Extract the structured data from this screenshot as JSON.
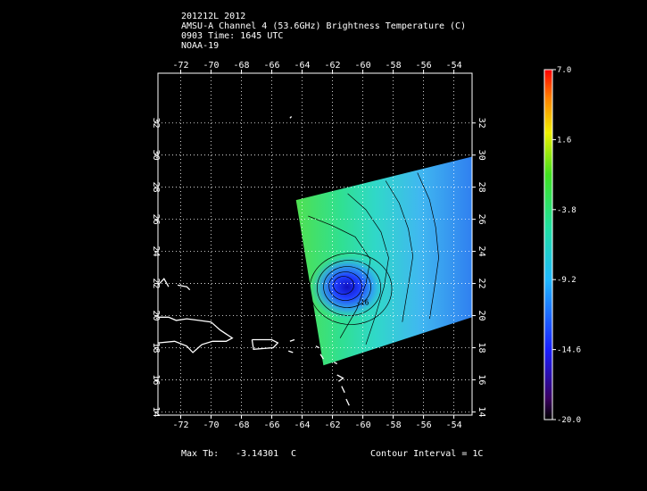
{
  "header": {
    "lines": [
      "201212L 2012",
      "AMSU-A Channel 4 (53.6GHz) Brightness Temperature (C)",
      "0903 Time: 1645 UTC",
      "NOAA-19"
    ]
  },
  "map": {
    "lon_range": [
      -73.5,
      -52.8
    ],
    "lat_range": [
      13.8,
      35.1
    ],
    "lon_ticks": [
      -72,
      -70,
      -68,
      -66,
      -64,
      -62,
      -60,
      -58,
      -56,
      -54
    ],
    "lat_ticks": [
      14,
      16,
      18,
      20,
      22,
      24,
      26,
      28,
      30,
      32
    ],
    "swath_corners": [
      [
        -64.4,
        27.2
      ],
      [
        -52.8,
        29.9
      ],
      [
        -52.8,
        19.9
      ],
      [
        -62.6,
        16.9
      ]
    ],
    "storm_center": [
      -61.5,
      22.0
    ],
    "storm_center_label": "-16"
  },
  "colorbar": {
    "labels": [
      "7.0",
      "1.6",
      "-3.8",
      "-9.2",
      "-14.6",
      "-20.0"
    ],
    "values": [
      7.0,
      1.6,
      -3.8,
      -9.2,
      -14.6,
      -20.0
    ],
    "range": [
      -20.0,
      7.0
    ]
  },
  "footer": {
    "max_tb_label": "Max Tb:",
    "max_tb_value": "-3.14301",
    "max_tb_unit": "C",
    "contour_interval": "Contour Interval = 1C"
  }
}
